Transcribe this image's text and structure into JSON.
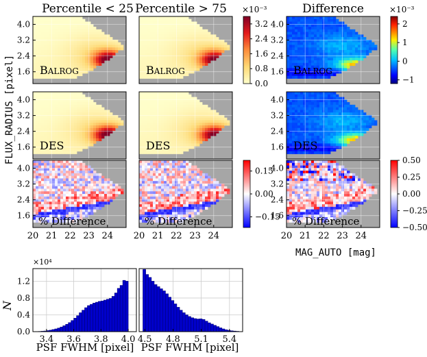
{
  "chart_data": {
    "type": "heatmap",
    "col_titles": [
      "Percentile < 25",
      "Percentile > 75",
      "Difference"
    ],
    "row_labels": [
      "BALROG",
      "DES",
      "% Difference"
    ],
    "ylabel": "FLUX_RADIUS [pixel]",
    "xlabel": "MAG_AUTO [mag]",
    "x_ticks": [
      "20",
      "21",
      "22",
      "23",
      "24"
    ],
    "y_ticks": [
      "4.0",
      "3.2",
      "2.4",
      "1.6"
    ],
    "xlim": [
      20,
      25
    ],
    "ylim": [
      1.0,
      4.4
    ],
    "colorbars": [
      {
        "exponent": "×10⁻³",
        "ticks": [
          "3.2",
          "2.4",
          "1.6",
          "0.8",
          "0.0"
        ],
        "colormap": "yellow-orange-red"
      },
      {
        "exponent": "×10⁻³",
        "ticks": [
          "2",
          "1",
          "0",
          "−1"
        ],
        "colormap": "jet"
      },
      {
        "exponent": "",
        "ticks": [
          "0.15",
          "0.00",
          "−0.15"
        ],
        "colormap": "blue-white-red"
      },
      {
        "exponent": "",
        "ticks": [
          "0.50",
          "0.25",
          "0.00",
          "−0.25",
          "−0.50"
        ],
        "colormap": "blue-white-red"
      }
    ],
    "histograms": {
      "type": "bar",
      "ylabel": "N",
      "y_exponent": "×10⁴",
      "y_ticks": [
        "1.2",
        "0.8",
        "0.4",
        "0.0"
      ],
      "ylim": [
        0,
        15000
      ],
      "xlabel": "PSF FWHM [pixel]",
      "panels": [
        {
          "x_ticks": [
            "3.4",
            "3.6",
            "3.8",
            "4.0"
          ],
          "xlim": [
            3.3,
            4.06
          ],
          "bin_edges_start": 3.34,
          "bin_width": 0.02,
          "values": [
            50,
            100,
            150,
            250,
            350,
            500,
            650,
            850,
            1100,
            1400,
            1750,
            2150,
            2650,
            3200,
            3800,
            4500,
            5100,
            5700,
            6200,
            6500,
            6800,
            7000,
            7200,
            7300,
            7500,
            7700,
            7900,
            8400,
            9200,
            10300,
            11000,
            12200,
            12000
          ]
        },
        {
          "x_ticks": [
            "4.5",
            "4.8",
            "5.1",
            "5.4"
          ],
          "xlim": [
            4.44,
            5.54
          ],
          "bin_edges_start": 4.48,
          "bin_width": 0.03,
          "values": [
            14800,
            13600,
            12900,
            12000,
            11200,
            10700,
            10200,
            9700,
            9000,
            8200,
            7400,
            6600,
            5800,
            5100,
            4500,
            4000,
            3600,
            3300,
            3100,
            3000,
            3050,
            2900,
            2500,
            2100,
            1800,
            1500,
            1200,
            900,
            650,
            450,
            300,
            200,
            130,
            80
          ]
        }
      ]
    }
  }
}
